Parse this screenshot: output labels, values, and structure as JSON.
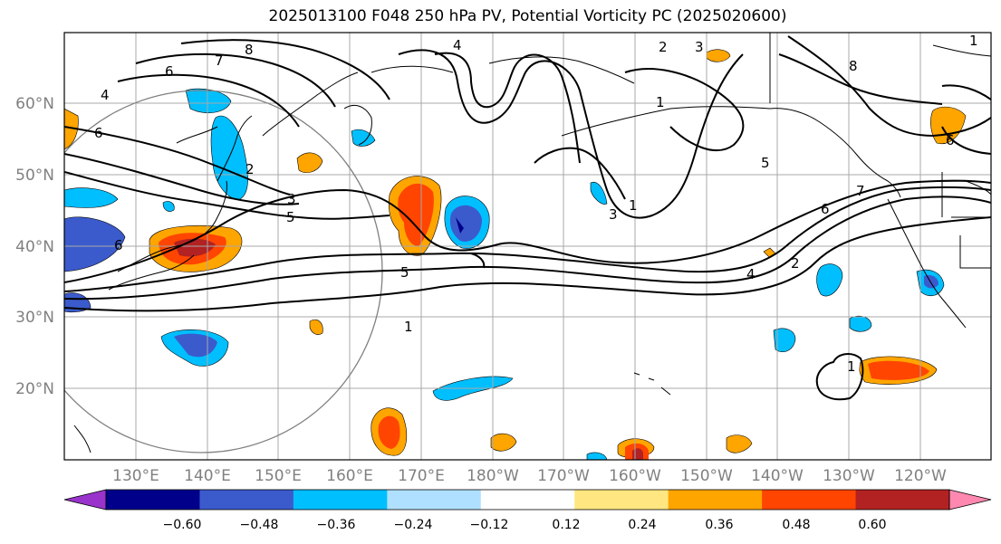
{
  "title": "2025013100 F048 250 hPa PV, Potential Vorticity PC (2025020600)",
  "map": {
    "lat_labels": [
      "60°N",
      "50°N",
      "40°N",
      "30°N",
      "20°N"
    ],
    "lon_labels": [
      "130°E",
      "140°E",
      "150°E",
      "160°E",
      "170°E",
      "180°W",
      "170°W",
      "160°W",
      "150°W",
      "140°W",
      "130°W",
      "120°W"
    ],
    "contour_labels": [
      "8",
      "7",
      "6",
      "4",
      "6",
      "2",
      "3",
      "5",
      "5",
      "1",
      "4",
      "2",
      "3",
      "1",
      "3",
      "1",
      "5",
      "7",
      "6",
      "4",
      "2",
      "1",
      "6",
      "6",
      "1",
      "8"
    ]
  },
  "colorbar": {
    "ticks": [
      "−0.60",
      "−0.48",
      "−0.36",
      "−0.24",
      "−0.12",
      "0.12",
      "0.24",
      "0.36",
      "0.48",
      "0.60"
    ],
    "colors": [
      "#9933cc",
      "#00008b",
      "#3b5bcc",
      "#00bfff",
      "#b0e0ff",
      "#ffffff",
      "#ffe680",
      "#ffa500",
      "#ff4500",
      "#b22222",
      "#ff88b0"
    ]
  }
}
